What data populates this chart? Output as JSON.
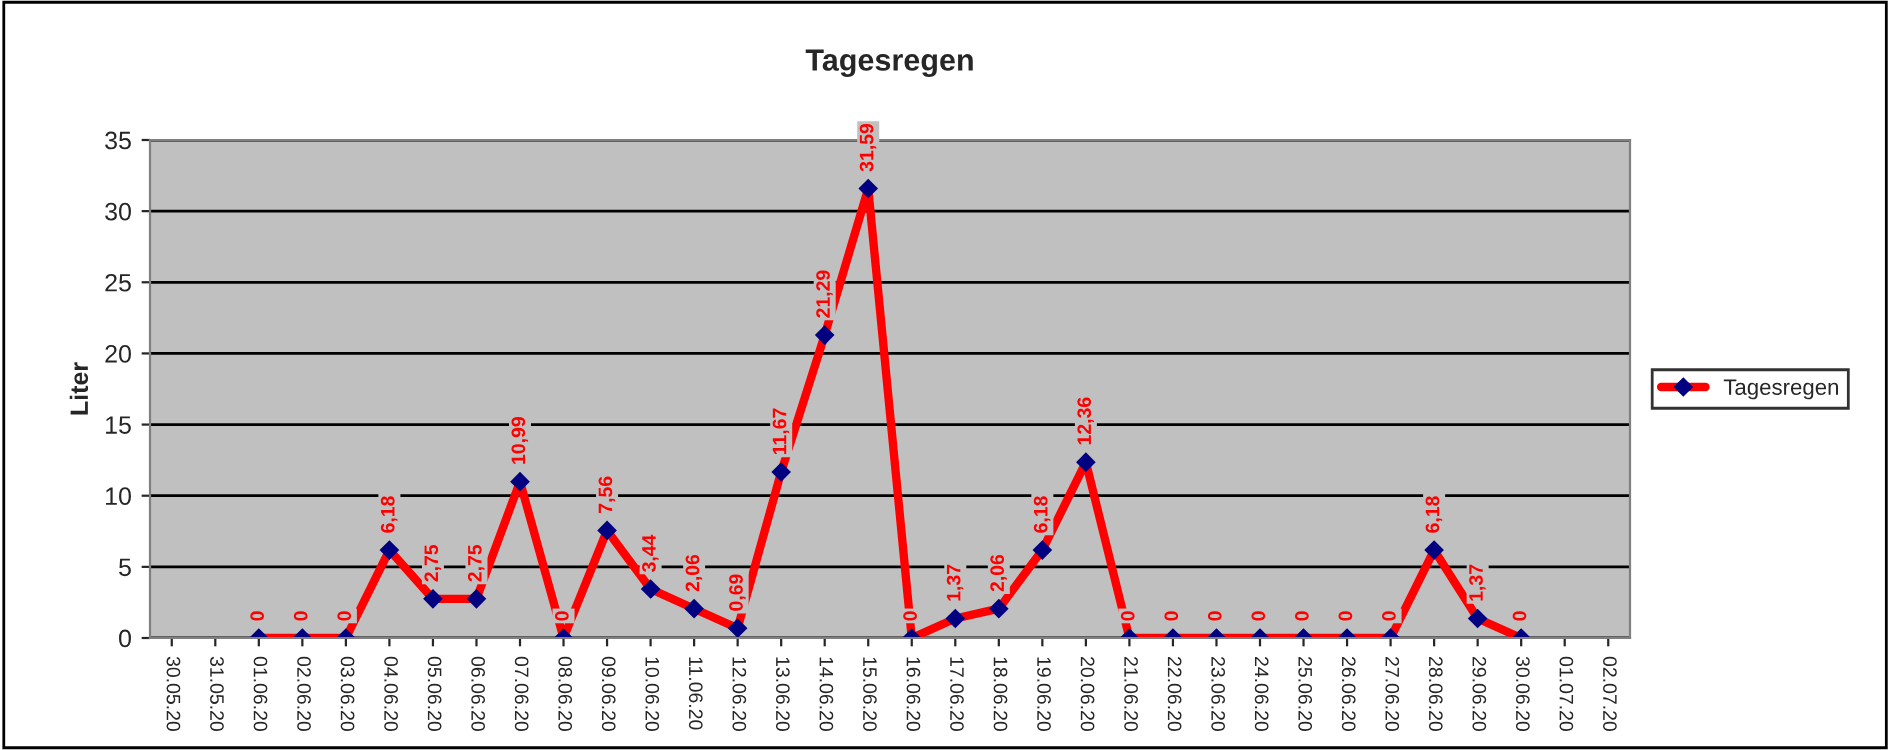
{
  "chart_data": {
    "type": "line",
    "title": "Tagesregen",
    "ylabel": "Liter",
    "categories": [
      "30.05.20",
      "31.05.20",
      "01.06.20",
      "02.06.20",
      "03.06.20",
      "04.06.20",
      "05.06.20",
      "06.06.20",
      "07.06.20",
      "08.06.20",
      "09.06.20",
      "10.06.20",
      "11.06.20",
      "12.06.20",
      "13.06.20",
      "14.06.20",
      "15.06.20",
      "16.06.20",
      "17.06.20",
      "18.06.20",
      "19.06.20",
      "20.06.20",
      "21.06.20",
      "22.06.20",
      "23.06.20",
      "24.06.20",
      "25.06.20",
      "26.06.20",
      "27.06.20",
      "28.06.20",
      "29.06.20",
      "30.06.20",
      "01.07.20",
      "02.07.20"
    ],
    "series": [
      {
        "name": "Tagesregen",
        "color": "#ff0000",
        "values": [
          null,
          null,
          0,
          0,
          0,
          6.18,
          2.75,
          2.75,
          10.99,
          0,
          7.56,
          3.44,
          2.06,
          0.69,
          11.67,
          21.29,
          31.59,
          0,
          1.37,
          2.06,
          6.18,
          12.36,
          0,
          0,
          0,
          0,
          0,
          0,
          0,
          6.18,
          1.37,
          0,
          null,
          null
        ],
        "value_labels": [
          null,
          null,
          "0",
          "0",
          "0",
          "6,18",
          "2,75",
          "2,75",
          "10,99",
          "0",
          "7,56",
          "3,44",
          "2,06",
          "0,69",
          "11,67",
          "21,29",
          "31,59",
          "0",
          "1,37",
          "2,06",
          "6,18",
          "12,36",
          "0",
          "0",
          "0",
          "0",
          "0",
          "0",
          "0",
          "6,18",
          "1,37",
          "0",
          null,
          null
        ]
      }
    ],
    "ylim": [
      0,
      35
    ],
    "yticks": [
      0,
      5,
      10,
      15,
      20,
      25,
      30,
      35
    ],
    "grid": "y",
    "legend": "right",
    "marker": "diamond",
    "line_style": "solid"
  }
}
